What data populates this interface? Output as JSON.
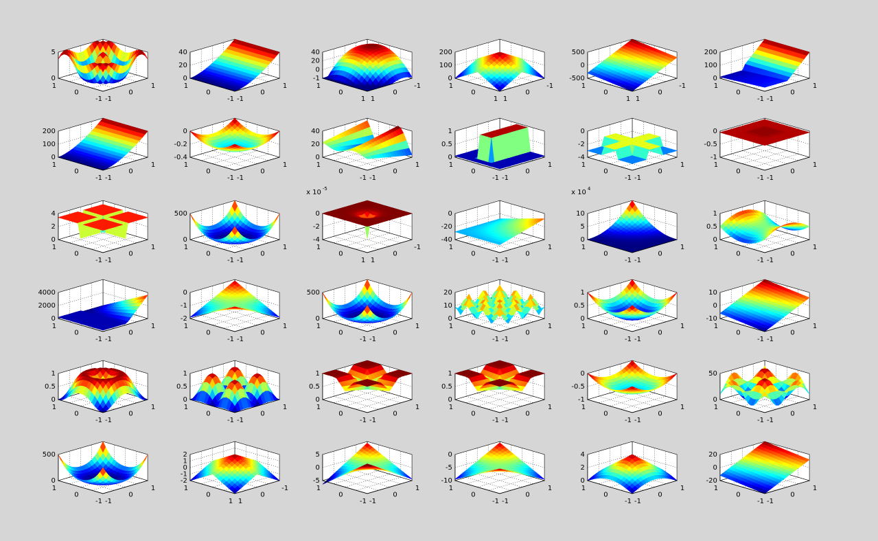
{
  "colors": {
    "background": "#d6d6d6",
    "colormap": "jet",
    "axis": "#000000",
    "grid": "#000000"
  },
  "chart_data": [
    {
      "type": "surface",
      "ztick_labels": [
        "5",
        "0"
      ],
      "xtick_labels": [
        "1",
        "0",
        "-1"
      ],
      "ytick_labels": [
        "-1",
        "0",
        "1"
      ],
      "zlim": [
        0,
        5
      ],
      "shape": "ripple"
    },
    {
      "type": "surface",
      "ztick_labels": [
        "40",
        "20",
        "0"
      ],
      "xtick_labels": [
        "1",
        "0",
        "-1"
      ],
      "ytick_labels": [
        "-1",
        "0",
        "1"
      ],
      "zlim": [
        0,
        40
      ],
      "shape": "ramp-back"
    },
    {
      "type": "surface",
      "ztick_labels": [
        "40",
        "20",
        "0",
        "-1"
      ],
      "xtick_labels": [
        "1",
        "0",
        "1"
      ],
      "ytick_labels": [
        "1",
        "0",
        "-1"
      ],
      "zlim": [
        0,
        40
      ],
      "shape": "dome-corner"
    },
    {
      "type": "surface",
      "ztick_labels": [
        "200",
        "100",
        "0"
      ],
      "xtick_labels": [
        "1",
        "0",
        "1"
      ],
      "ytick_labels": [
        "1",
        "0",
        "-1"
      ],
      "zlim": [
        0,
        200
      ],
      "shape": "pyramid"
    },
    {
      "type": "surface",
      "ztick_labels": [
        "500",
        "0",
        "-500"
      ],
      "xtick_labels": [
        "1",
        "0",
        "1"
      ],
      "ytick_labels": [
        "1",
        "0",
        "-1"
      ],
      "zlim": [
        -500,
        500
      ],
      "shape": "plane-tilt"
    },
    {
      "type": "surface",
      "ztick_labels": [
        "200",
        "100",
        "0"
      ],
      "xtick_labels": [
        "1",
        "0",
        "-1"
      ],
      "ytick_labels": [
        "-1",
        "0",
        "1"
      ],
      "zlim": [
        0,
        200
      ],
      "shape": "step-slope"
    },
    {
      "type": "surface",
      "ztick_labels": [
        "200",
        "100",
        "0"
      ],
      "xtick_labels": [
        "1",
        "0",
        "-1"
      ],
      "ytick_labels": [
        "-1",
        "0",
        "1"
      ],
      "zlim": [
        0,
        200
      ],
      "shape": "ramp-back"
    },
    {
      "type": "surface",
      "ztick_labels": [
        "0",
        "-0.2",
        "-0.4"
      ],
      "xtick_labels": [
        "1",
        "0",
        "-1"
      ],
      "ytick_labels": [
        "-1",
        "0",
        "1"
      ],
      "zlim": [
        -0.4,
        0
      ],
      "shape": "bowl-neg"
    },
    {
      "type": "surface",
      "ztick_labels": [
        "40",
        "20",
        "0"
      ],
      "xtick_labels": [
        "1",
        "0",
        "-1"
      ],
      "ytick_labels": [
        "-1",
        "0",
        "1"
      ],
      "zlim": [
        0,
        40
      ],
      "shape": "wave-ridge"
    },
    {
      "type": "surface",
      "ztick_labels": [
        "1",
        "0.5",
        "0"
      ],
      "xtick_labels": [
        "1",
        "0",
        "-1"
      ],
      "ytick_labels": [
        "-1",
        "0",
        "1"
      ],
      "zlim": [
        0,
        1
      ],
      "shape": "box-blue"
    },
    {
      "type": "surface",
      "ztick_labels": [
        "0",
        "-2",
        "-4"
      ],
      "xtick_labels": [
        "1",
        "0",
        "-1"
      ],
      "ytick_labels": [
        "-1",
        "0",
        "1"
      ],
      "zlim": [
        -4,
        0
      ],
      "shape": "cross-blue"
    },
    {
      "type": "surface",
      "ztick_labels": [
        "0",
        "-0.5",
        "-1"
      ],
      "xtick_labels": [
        "1",
        "0",
        "-1"
      ],
      "ytick_labels": [
        "-1",
        "0",
        "1"
      ],
      "zlim": [
        -1,
        0
      ],
      "shape": "box-red"
    },
    {
      "type": "surface",
      "ztick_labels": [
        "4",
        "2",
        "0"
      ],
      "xtick_labels": [
        "1",
        "0",
        "-1"
      ],
      "ytick_labels": [
        "-1",
        "0",
        "1"
      ],
      "zlim": [
        0,
        4
      ],
      "shape": "cross-red"
    },
    {
      "type": "surface",
      "ztick_labels": [
        "500",
        "0"
      ],
      "xtick_labels": [
        "1",
        "0",
        "-1"
      ],
      "ytick_labels": [
        "-1",
        "0",
        "1"
      ],
      "zlim": [
        0,
        500
      ],
      "shape": "bowl-edge"
    },
    {
      "type": "surface",
      "ztick_labels": [
        "0",
        "-2",
        "-4"
      ],
      "xtick_labels": [
        "1",
        "0",
        "1"
      ],
      "ytick_labels": [
        "1",
        "0",
        "-1"
      ],
      "zlim": [
        -4,
        0
      ],
      "exponent": "x 10",
      "exponent_power": "-5",
      "shape": "spike-down"
    },
    {
      "type": "surface",
      "ztick_labels": [
        "0",
        "-20",
        "-40"
      ],
      "xtick_labels": [
        "1",
        "0",
        "-1"
      ],
      "ytick_labels": [
        "-1",
        "0",
        "1"
      ],
      "zlim": [
        -40,
        0
      ],
      "shape": "flat-sheet"
    },
    {
      "type": "surface",
      "ztick_labels": [
        "10",
        "5",
        "0"
      ],
      "xtick_labels": [
        "1",
        "0",
        "-1"
      ],
      "ytick_labels": [
        "-1",
        "0",
        "1"
      ],
      "zlim": [
        0,
        10
      ],
      "exponent": "x 10",
      "exponent_power": "4",
      "shape": "corner-rise"
    },
    {
      "type": "surface",
      "ztick_labels": [
        "1",
        "0.5",
        "0"
      ],
      "xtick_labels": [
        "1",
        "0",
        "-1"
      ],
      "ytick_labels": [
        "-1",
        "0",
        "1"
      ],
      "zlim": [
        0,
        1
      ],
      "shape": "saddle-soft"
    },
    {
      "type": "surface",
      "ztick_labels": [
        "4000",
        "2000",
        "0"
      ],
      "xtick_labels": [
        "1",
        "0",
        "-1"
      ],
      "ytick_labels": [
        "-1",
        "0",
        "1"
      ],
      "zlim": [
        0,
        4000
      ],
      "shape": "fold"
    },
    {
      "type": "surface",
      "ztick_labels": [
        "0",
        "-1",
        "-2"
      ],
      "xtick_labels": [
        "1",
        "0",
        "-1"
      ],
      "ytick_labels": [
        "-1",
        "0",
        "1"
      ],
      "zlim": [
        -2,
        0
      ],
      "shape": "saddle"
    },
    {
      "type": "surface",
      "ztick_labels": [
        "500",
        "0"
      ],
      "xtick_labels": [
        "1",
        "0",
        "-1"
      ],
      "ytick_labels": [
        "-1",
        "0",
        "1"
      ],
      "zlim": [
        0,
        500
      ],
      "shape": "bowl-edge"
    },
    {
      "type": "surface",
      "ztick_labels": [
        "20",
        "10",
        "0"
      ],
      "xtick_labels": [
        "1",
        "0",
        "-1"
      ],
      "ytick_labels": [
        "-1",
        "0",
        "1"
      ],
      "zlim": [
        0,
        20
      ],
      "shape": "egg-crate"
    },
    {
      "type": "surface",
      "ztick_labels": [
        "1",
        "0.5",
        "0"
      ],
      "xtick_labels": [
        "1",
        "0",
        "-1"
      ],
      "ytick_labels": [
        "-1",
        "0",
        "1"
      ],
      "zlim": [
        0,
        1
      ],
      "shape": "paraboloid"
    },
    {
      "type": "surface",
      "ztick_labels": [
        "10",
        "0",
        "-10"
      ],
      "xtick_labels": [
        "1",
        "0",
        "-1"
      ],
      "ytick_labels": [
        "-1",
        "0",
        "1"
      ],
      "zlim": [
        -10,
        10
      ],
      "shape": "plane-tilt"
    },
    {
      "type": "surface",
      "ztick_labels": [
        "1",
        "0.5",
        "0"
      ],
      "xtick_labels": [
        "1",
        "0",
        "-1"
      ],
      "ytick_labels": [
        "-1",
        "0",
        "1"
      ],
      "zlim": [
        0,
        1
      ],
      "shape": "ring"
    },
    {
      "type": "surface",
      "ztick_labels": [
        "1",
        "0.5",
        "0"
      ],
      "xtick_labels": [
        "1",
        "0",
        "-1"
      ],
      "ytick_labels": [
        "-1",
        "0",
        "1"
      ],
      "zlim": [
        0,
        1
      ],
      "shape": "four-humps"
    },
    {
      "type": "surface",
      "ztick_labels": [
        "1",
        "0.5",
        "0"
      ],
      "xtick_labels": [
        "1",
        "0",
        "-1"
      ],
      "ytick_labels": [
        "-1",
        "0",
        "1"
      ],
      "zlim": [
        0,
        1
      ],
      "shape": "cross-valley"
    },
    {
      "type": "surface",
      "ztick_labels": [
        "1",
        "0.5",
        "0"
      ],
      "xtick_labels": [
        "1",
        "0",
        "-1"
      ],
      "ytick_labels": [
        "-1",
        "0",
        "1"
      ],
      "zlim": [
        0,
        1
      ],
      "shape": "cross-valley"
    },
    {
      "type": "surface",
      "ztick_labels": [
        "0",
        "-0.5",
        "-1"
      ],
      "xtick_labels": [
        "1",
        "0",
        "-1"
      ],
      "ytick_labels": [
        "-1",
        "0",
        "1"
      ],
      "zlim": [
        -1,
        0
      ],
      "shape": "bowl-neg"
    },
    {
      "type": "surface",
      "ztick_labels": [
        "50",
        "0"
      ],
      "xtick_labels": [
        "1",
        "0",
        "-1"
      ],
      "ytick_labels": [
        "-1",
        "0",
        "1"
      ],
      "zlim": [
        0,
        50
      ],
      "shape": "egg-big"
    },
    {
      "type": "surface",
      "ztick_labels": [
        "500",
        "0"
      ],
      "xtick_labels": [
        "1",
        "0",
        "-1"
      ],
      "ytick_labels": [
        "-1",
        "0",
        "1"
      ],
      "zlim": [
        0,
        500
      ],
      "shape": "bowl-edge"
    },
    {
      "type": "surface",
      "ztick_labels": [
        "2",
        "1",
        "0",
        "-1",
        "-2"
      ],
      "xtick_labels": [
        "1",
        "0",
        "1"
      ],
      "ytick_labels": [
        "1",
        "0",
        "-1"
      ],
      "zlim": [
        -2,
        2
      ],
      "shape": "pyramid"
    },
    {
      "type": "surface",
      "ztick_labels": [
        "5",
        "0",
        "-5"
      ],
      "xtick_labels": [
        "1",
        "0",
        "-1"
      ],
      "ytick_labels": [
        "-1",
        "0",
        "1"
      ],
      "zlim": [
        -5,
        5
      ],
      "shape": "twist"
    },
    {
      "type": "surface",
      "ztick_labels": [
        "0",
        "-5",
        "-10"
      ],
      "xtick_labels": [
        "1",
        "0",
        "-1"
      ],
      "ytick_labels": [
        "-1",
        "0",
        "1"
      ],
      "zlim": [
        -10,
        0
      ],
      "shape": "saddle"
    },
    {
      "type": "surface",
      "ztick_labels": [
        "4",
        "2",
        "0"
      ],
      "xtick_labels": [
        "1",
        "0",
        "-1"
      ],
      "ytick_labels": [
        "-1",
        "0",
        "1"
      ],
      "zlim": [
        0,
        4
      ],
      "shape": "cone"
    },
    {
      "type": "surface",
      "ztick_labels": [
        "20",
        "0",
        "-20"
      ],
      "xtick_labels": [
        "1",
        "0",
        "-1"
      ],
      "ytick_labels": [
        "-1",
        "0",
        "1"
      ],
      "zlim": [
        -20,
        20
      ],
      "shape": "plane-tilt"
    }
  ]
}
